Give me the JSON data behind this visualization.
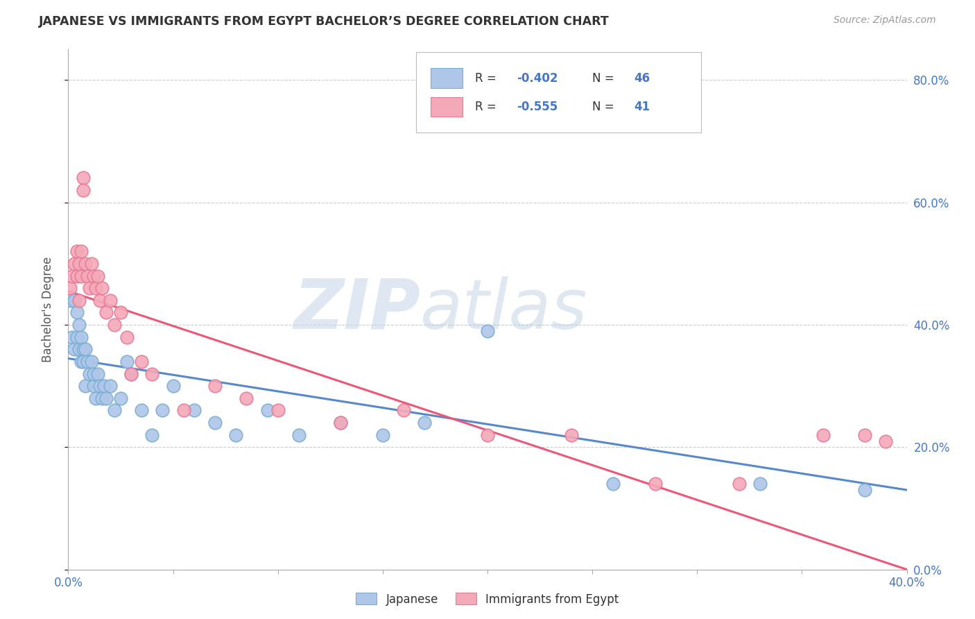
{
  "title": "JAPANESE VS IMMIGRANTS FROM EGYPT BACHELOR’S DEGREE CORRELATION CHART",
  "source": "Source: ZipAtlas.com",
  "ylabel": "Bachelor's Degree",
  "watermark_zip": "ZIP",
  "watermark_atlas": "atlas",
  "legend_r1": "-0.402",
  "legend_n1": "46",
  "legend_r2": "-0.555",
  "legend_n2": "41",
  "legend_label1": "Japanese",
  "legend_label2": "Immigrants from Egypt",
  "blue_fill": "#aec6e8",
  "blue_edge": "#7aadd4",
  "pink_fill": "#f4a9b8",
  "pink_edge": "#e87a96",
  "blue_line_color": "#5588cc",
  "pink_line_color": "#ee5577",
  "text_color": "#4477CC",
  "axis_color": "#aaaaaa",
  "grid_color": "#cccccc",
  "title_color": "#333333",
  "source_color": "#999999",
  "japanese_x": [
    0.001,
    0.002,
    0.003,
    0.003,
    0.004,
    0.004,
    0.005,
    0.005,
    0.006,
    0.006,
    0.007,
    0.007,
    0.008,
    0.008,
    0.009,
    0.01,
    0.011,
    0.012,
    0.012,
    0.013,
    0.014,
    0.015,
    0.016,
    0.017,
    0.018,
    0.02,
    0.022,
    0.025,
    0.028,
    0.03,
    0.035,
    0.04,
    0.045,
    0.05,
    0.06,
    0.07,
    0.08,
    0.095,
    0.11,
    0.13,
    0.15,
    0.17,
    0.2,
    0.26,
    0.33,
    0.38
  ],
  "japanese_y": [
    0.44,
    0.38,
    0.36,
    0.44,
    0.38,
    0.42,
    0.36,
    0.4,
    0.38,
    0.34,
    0.36,
    0.34,
    0.36,
    0.3,
    0.34,
    0.32,
    0.34,
    0.3,
    0.32,
    0.28,
    0.32,
    0.3,
    0.28,
    0.3,
    0.28,
    0.3,
    0.26,
    0.28,
    0.34,
    0.32,
    0.26,
    0.22,
    0.26,
    0.3,
    0.26,
    0.24,
    0.22,
    0.26,
    0.22,
    0.24,
    0.22,
    0.24,
    0.39,
    0.14,
    0.14,
    0.13
  ],
  "egypt_x": [
    0.001,
    0.002,
    0.003,
    0.004,
    0.004,
    0.005,
    0.005,
    0.006,
    0.006,
    0.007,
    0.007,
    0.008,
    0.009,
    0.01,
    0.011,
    0.012,
    0.013,
    0.014,
    0.015,
    0.016,
    0.018,
    0.02,
    0.022,
    0.025,
    0.028,
    0.03,
    0.035,
    0.04,
    0.055,
    0.07,
    0.085,
    0.1,
    0.13,
    0.16,
    0.2,
    0.24,
    0.28,
    0.32,
    0.36,
    0.38,
    0.39
  ],
  "egypt_y": [
    0.46,
    0.48,
    0.5,
    0.48,
    0.52,
    0.44,
    0.5,
    0.48,
    0.52,
    0.64,
    0.62,
    0.5,
    0.48,
    0.46,
    0.5,
    0.48,
    0.46,
    0.48,
    0.44,
    0.46,
    0.42,
    0.44,
    0.4,
    0.42,
    0.38,
    0.32,
    0.34,
    0.32,
    0.26,
    0.3,
    0.28,
    0.26,
    0.24,
    0.26,
    0.22,
    0.22,
    0.14,
    0.14,
    0.22,
    0.22,
    0.21
  ],
  "xlim": [
    0.0,
    0.4
  ],
  "ylim": [
    0.0,
    0.85
  ],
  "blue_line_x": [
    0.0,
    0.4
  ],
  "blue_line_y": [
    0.345,
    0.13
  ],
  "pink_line_x": [
    0.0,
    0.4
  ],
  "pink_line_y": [
    0.455,
    0.0
  ],
  "yticks": [
    0.0,
    0.2,
    0.4,
    0.6,
    0.8
  ]
}
